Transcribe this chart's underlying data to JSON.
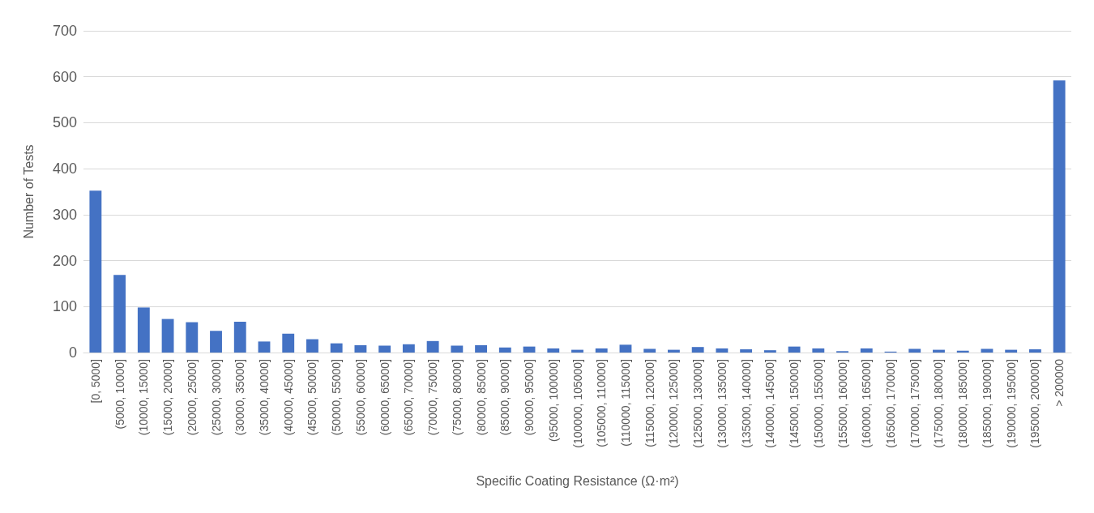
{
  "chart_data": {
    "type": "bar",
    "xlabel": "Specific Coating Resistance (Ω·m²)",
    "ylabel": "Number of Tests",
    "categories": [
      "[0, 5000]",
      "(5000, 10000]",
      "(10000, 15000]",
      "(15000, 20000]",
      "(20000, 25000]",
      "(25000, 30000]",
      "(30000, 35000]",
      "(35000, 40000]",
      "(40000, 45000]",
      "(45000, 50000]",
      "(50000, 55000]",
      "(55000, 60000]",
      "(60000, 65000]",
      "(65000, 70000]",
      "(70000, 75000]",
      "(75000, 80000]",
      "(80000, 85000]",
      "(85000, 90000]",
      "(90000, 95000]",
      "(95000, 100000]",
      "(100000, 105000]",
      "(105000, 110000]",
      "(110000, 115000]",
      "(115000, 120000]",
      "(120000, 125000]",
      "(125000, 130000]",
      "(130000, 135000]",
      "(135000, 140000]",
      "(140000, 145000]",
      "(145000, 150000]",
      "(150000, 155000]",
      "(155000, 160000]",
      "(160000, 165000]",
      "(165000, 170000]",
      "(170000, 175000]",
      "(175000, 180000]",
      "(180000, 185000]",
      "(185000, 190000]",
      "(190000, 195000]",
      "(195000, 200000]",
      "> 200000"
    ],
    "values": [
      352,
      169,
      98,
      73,
      66,
      47,
      67,
      24,
      41,
      29,
      20,
      16,
      15,
      18,
      25,
      15,
      16,
      11,
      13,
      9,
      6,
      9,
      17,
      8,
      6,
      12,
      9,
      7,
      5,
      13,
      9,
      3,
      9,
      2,
      8,
      6,
      4,
      8,
      6,
      7,
      592
    ],
    "color": "#4472c4",
    "ylim": [
      0,
      700
    ],
    "yticks": [
      0,
      100,
      200,
      300,
      400,
      500,
      600,
      700
    ],
    "grid": "y"
  }
}
